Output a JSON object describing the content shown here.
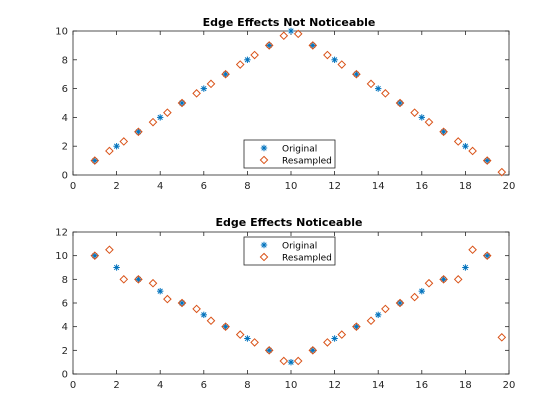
{
  "chart_data": [
    {
      "type": "scatter",
      "title": "Edge Effects Not Noticeable",
      "xlabel": "",
      "ylabel": "",
      "xlim": [
        0,
        20
      ],
      "ylim": [
        0,
        10
      ],
      "xticks": [
        0,
        2,
        4,
        6,
        8,
        10,
        12,
        14,
        16,
        18,
        20
      ],
      "yticks": [
        0,
        2,
        4,
        6,
        8,
        10
      ],
      "grid": false,
      "legend_position": "bottom-center",
      "series": [
        {
          "name": "Original",
          "marker": "asterisk",
          "color": "#0072BD",
          "x": [
            1,
            2,
            3,
            4,
            5,
            6,
            7,
            8,
            9,
            10,
            11,
            12,
            13,
            14,
            15,
            16,
            17,
            18,
            19
          ],
          "y": [
            1,
            2,
            3,
            4,
            5,
            6,
            7,
            8,
            9,
            10,
            9,
            8,
            7,
            6,
            5,
            4,
            3,
            2,
            1
          ]
        },
        {
          "name": "Resampled",
          "marker": "diamond",
          "color": "#D95319",
          "x": [
            1,
            1.67,
            2.33,
            3,
            3.67,
            4.33,
            5,
            5.67,
            6.33,
            7,
            7.67,
            8.33,
            9,
            9.67,
            10.33,
            11,
            11.67,
            12.33,
            13,
            13.67,
            14.33,
            15,
            15.67,
            16.33,
            17,
            17.67,
            18.33,
            19,
            19.67
          ],
          "y": [
            1,
            1.67,
            2.33,
            3,
            3.67,
            4.33,
            5,
            5.67,
            6.33,
            7,
            7.67,
            8.33,
            9,
            9.67,
            9.8,
            9,
            8.33,
            7.67,
            7,
            6.33,
            5.67,
            5,
            4.33,
            3.67,
            3,
            2.33,
            1.67,
            1,
            0.2
          ]
        }
      ]
    },
    {
      "type": "scatter",
      "title": "Edge Effects Noticeable",
      "xlabel": "",
      "ylabel": "",
      "xlim": [
        0,
        20
      ],
      "ylim": [
        0,
        12
      ],
      "xticks": [
        0,
        2,
        4,
        6,
        8,
        10,
        12,
        14,
        16,
        18,
        20
      ],
      "yticks": [
        0,
        2,
        4,
        6,
        8,
        10,
        12
      ],
      "grid": false,
      "legend_position": "top-center",
      "series": [
        {
          "name": "Original",
          "marker": "asterisk",
          "color": "#0072BD",
          "x": [
            1,
            2,
            3,
            4,
            5,
            6,
            7,
            8,
            9,
            10,
            11,
            12,
            13,
            14,
            15,
            16,
            17,
            18,
            19
          ],
          "y": [
            10,
            9,
            8,
            7,
            6,
            5,
            4,
            3,
            2,
            1,
            2,
            3,
            4,
            5,
            6,
            7,
            8,
            9,
            10
          ]
        },
        {
          "name": "Resampled",
          "marker": "diamond",
          "color": "#D95319",
          "x": [
            1,
            1.67,
            2.33,
            3,
            3.67,
            4.33,
            5,
            5.67,
            6.33,
            7,
            7.67,
            8.33,
            9,
            9.67,
            10.33,
            11,
            11.67,
            12.33,
            13,
            13.67,
            14.33,
            15,
            15.67,
            16.33,
            17,
            17.67,
            18.33,
            19,
            19.67
          ],
          "y": [
            10,
            10.5,
            8,
            8,
            7.67,
            6.33,
            6,
            5.5,
            4.5,
            4,
            3.33,
            2.67,
            2,
            1.1,
            1.1,
            2,
            2.67,
            3.33,
            4,
            4.5,
            5.5,
            6,
            6.5,
            7.67,
            8,
            8,
            10.5,
            10,
            3.1
          ]
        }
      ]
    }
  ]
}
